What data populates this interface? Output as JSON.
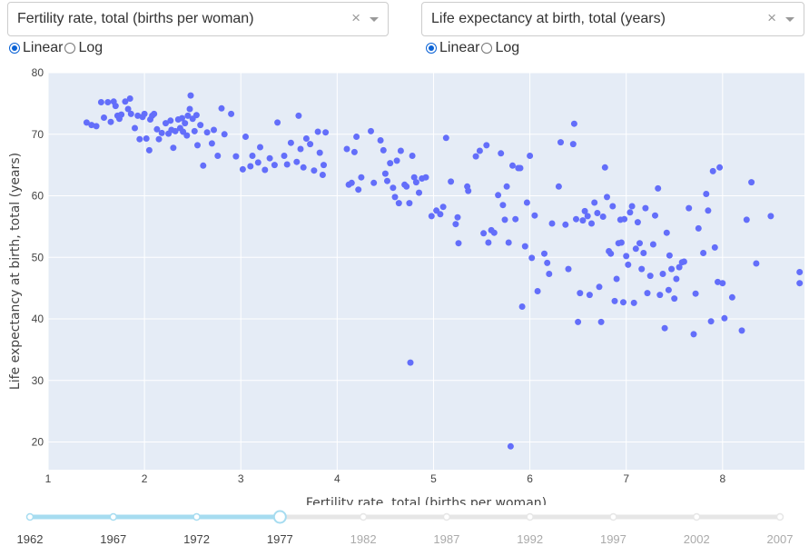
{
  "controls": {
    "x_dropdown": {
      "value": "Fertility rate, total (births per woman)"
    },
    "y_dropdown": {
      "value": "Life expectancy at birth, total (years)"
    },
    "clear_symbol": "×",
    "x_scale": {
      "options": [
        "Linear",
        "Log"
      ],
      "selected": "Linear"
    },
    "y_scale": {
      "options": [
        "Linear",
        "Log"
      ],
      "selected": "Linear"
    }
  },
  "slider": {
    "marks": [
      "1962",
      "1967",
      "1972",
      "1977",
      "1982",
      "1987",
      "1992",
      "1997",
      "2002",
      "2007"
    ],
    "selected": "1977",
    "active_color": "#a6dcf0",
    "inactive_color": "#e6e6e6"
  },
  "chart_data": {
    "type": "scatter",
    "xlabel": "Fertility rate, total (births per woman)",
    "ylabel": "Life expectancy at birth, total (years)",
    "xlim": [
      1,
      8.85
    ],
    "ylim": [
      15.5,
      80
    ],
    "x_ticks": [
      1,
      2,
      3,
      4,
      5,
      6,
      7,
      8
    ],
    "y_ticks": [
      20,
      30,
      40,
      50,
      60,
      70,
      80
    ],
    "grid": true,
    "plot_bg": "#e5ecf6",
    "marker_color": "#636efa",
    "points": [
      [
        1.4,
        71.9
      ],
      [
        1.45,
        71.5
      ],
      [
        1.5,
        71.3
      ],
      [
        1.55,
        75.2
      ],
      [
        1.58,
        72.7
      ],
      [
        1.62,
        75.2
      ],
      [
        1.65,
        72.0
      ],
      [
        1.68,
        75.3
      ],
      [
        1.7,
        74.6
      ],
      [
        1.72,
        73.0
      ],
      [
        1.74,
        72.5
      ],
      [
        1.76,
        73.2
      ],
      [
        1.8,
        75.3
      ],
      [
        1.83,
        74.1
      ],
      [
        1.85,
        75.8
      ],
      [
        1.86,
        73.3
      ],
      [
        1.9,
        71.0
      ],
      [
        1.93,
        73.0
      ],
      [
        1.95,
        69.2
      ],
      [
        1.98,
        72.8
      ],
      [
        2.0,
        73.3
      ],
      [
        2.02,
        69.3
      ],
      [
        2.05,
        67.4
      ],
      [
        2.06,
        72.4
      ],
      [
        2.08,
        73.0
      ],
      [
        2.1,
        73.3
      ],
      [
        2.13,
        70.8
      ],
      [
        2.15,
        69.2
      ],
      [
        2.18,
        70.2
      ],
      [
        2.22,
        71.8
      ],
      [
        2.25,
        70.1
      ],
      [
        2.27,
        72.2
      ],
      [
        2.28,
        70.7
      ],
      [
        2.3,
        67.8
      ],
      [
        2.32,
        70.5
      ],
      [
        2.35,
        72.4
      ],
      [
        2.37,
        71.0
      ],
      [
        2.39,
        72.6
      ],
      [
        2.4,
        70.4
      ],
      [
        2.42,
        71.8
      ],
      [
        2.44,
        69.8
      ],
      [
        2.45,
        73.0
      ],
      [
        2.47,
        74.1
      ],
      [
        2.48,
        76.3
      ],
      [
        2.5,
        72.5
      ],
      [
        2.52,
        70.5
      ],
      [
        2.54,
        73.1
      ],
      [
        2.55,
        68.2
      ],
      [
        2.58,
        71.5
      ],
      [
        2.61,
        64.9
      ],
      [
        2.65,
        70.3
      ],
      [
        2.7,
        68.5
      ],
      [
        2.72,
        70.7
      ],
      [
        2.76,
        66.5
      ],
      [
        2.8,
        74.2
      ],
      [
        2.83,
        70.0
      ],
      [
        2.9,
        73.3
      ],
      [
        2.95,
        66.4
      ],
      [
        3.02,
        64.3
      ],
      [
        3.05,
        69.6
      ],
      [
        3.1,
        64.8
      ],
      [
        3.12,
        66.5
      ],
      [
        3.18,
        65.4
      ],
      [
        3.2,
        67.9
      ],
      [
        3.25,
        64.2
      ],
      [
        3.3,
        66.1
      ],
      [
        3.35,
        65.0
      ],
      [
        3.38,
        71.9
      ],
      [
        3.45,
        66.5
      ],
      [
        3.48,
        65.1
      ],
      [
        3.52,
        68.6
      ],
      [
        3.58,
        65.5
      ],
      [
        3.6,
        73.0
      ],
      [
        3.62,
        67.6
      ],
      [
        3.65,
        64.6
      ],
      [
        3.68,
        69.3
      ],
      [
        3.72,
        68.4
      ],
      [
        3.76,
        64.1
      ],
      [
        3.8,
        70.4
      ],
      [
        3.82,
        67.0
      ],
      [
        3.85,
        63.4
      ],
      [
        3.86,
        65.0
      ],
      [
        3.88,
        70.3
      ],
      [
        4.1,
        67.6
      ],
      [
        4.12,
        61.8
      ],
      [
        4.15,
        62.1
      ],
      [
        4.18,
        67.1
      ],
      [
        4.2,
        69.6
      ],
      [
        4.22,
        61.0
      ],
      [
        4.25,
        63.0
      ],
      [
        4.35,
        70.5
      ],
      [
        4.38,
        62.1
      ],
      [
        4.45,
        69.0
      ],
      [
        4.48,
        67.4
      ],
      [
        4.5,
        63.6
      ],
      [
        4.52,
        62.4
      ],
      [
        4.55,
        65.3
      ],
      [
        4.58,
        61.3
      ],
      [
        4.6,
        59.8
      ],
      [
        4.62,
        65.7
      ],
      [
        4.64,
        58.8
      ],
      [
        4.66,
        67.3
      ],
      [
        4.7,
        61.8
      ],
      [
        4.72,
        61.5
      ],
      [
        4.75,
        58.8
      ],
      [
        4.76,
        32.9
      ],
      [
        4.78,
        66.5
      ],
      [
        4.8,
        63.0
      ],
      [
        4.82,
        62.2
      ],
      [
        4.85,
        60.5
      ],
      [
        4.88,
        62.8
      ],
      [
        4.92,
        63.0
      ],
      [
        4.98,
        56.7
      ],
      [
        5.03,
        57.6
      ],
      [
        5.07,
        57.0
      ],
      [
        5.1,
        58.2
      ],
      [
        5.13,
        69.4
      ],
      [
        5.18,
        62.3
      ],
      [
        5.23,
        55.4
      ],
      [
        5.25,
        56.5
      ],
      [
        5.26,
        52.3
      ],
      [
        5.35,
        61.5
      ],
      [
        5.36,
        60.8
      ],
      [
        5.44,
        66.4
      ],
      [
        5.48,
        67.3
      ],
      [
        5.52,
        53.9
      ],
      [
        5.55,
        68.2
      ],
      [
        5.57,
        52.4
      ],
      [
        5.6,
        54.4
      ],
      [
        5.63,
        54.0
      ],
      [
        5.67,
        60.1
      ],
      [
        5.7,
        66.9
      ],
      [
        5.72,
        58.5
      ],
      [
        5.74,
        56.1
      ],
      [
        5.76,
        61.5
      ],
      [
        5.78,
        52.4
      ],
      [
        5.8,
        19.3
      ],
      [
        5.82,
        64.9
      ],
      [
        5.85,
        56.2
      ],
      [
        5.88,
        64.5
      ],
      [
        5.9,
        64.5
      ],
      [
        5.92,
        42.0
      ],
      [
        5.95,
        51.8
      ],
      [
        5.97,
        58.9
      ],
      [
        6.0,
        66.5
      ],
      [
        6.02,
        49.9
      ],
      [
        6.05,
        56.8
      ],
      [
        6.08,
        44.5
      ],
      [
        6.15,
        50.6
      ],
      [
        6.18,
        49.1
      ],
      [
        6.2,
        47.3
      ],
      [
        6.23,
        55.5
      ],
      [
        6.3,
        61.5
      ],
      [
        6.32,
        68.7
      ],
      [
        6.37,
        55.3
      ],
      [
        6.4,
        48.1
      ],
      [
        6.45,
        68.4
      ],
      [
        6.46,
        71.7
      ],
      [
        6.48,
        56.2
      ],
      [
        6.5,
        39.5
      ],
      [
        6.52,
        44.2
      ],
      [
        6.55,
        56.0
      ],
      [
        6.57,
        57.5
      ],
      [
        6.6,
        56.7
      ],
      [
        6.62,
        43.9
      ],
      [
        6.64,
        55.5
      ],
      [
        6.67,
        58.9
      ],
      [
        6.7,
        57.2
      ],
      [
        6.72,
        45.2
      ],
      [
        6.74,
        39.5
      ],
      [
        6.76,
        56.6
      ],
      [
        6.78,
        64.6
      ],
      [
        6.8,
        59.8
      ],
      [
        6.82,
        51.0
      ],
      [
        6.84,
        50.6
      ],
      [
        6.86,
        58.3
      ],
      [
        6.88,
        42.9
      ],
      [
        6.9,
        46.5
      ],
      [
        6.92,
        52.3
      ],
      [
        6.94,
        56.1
      ],
      [
        6.95,
        52.4
      ],
      [
        6.97,
        42.7
      ],
      [
        6.98,
        56.2
      ],
      [
        7.0,
        50.2
      ],
      [
        7.02,
        48.8
      ],
      [
        7.04,
        57.3
      ],
      [
        7.06,
        58.3
      ],
      [
        7.08,
        42.6
      ],
      [
        7.1,
        51.4
      ],
      [
        7.12,
        55.7
      ],
      [
        7.14,
        52.3
      ],
      [
        7.16,
        48.1
      ],
      [
        7.18,
        50.7
      ],
      [
        7.2,
        58.0
      ],
      [
        7.22,
        44.2
      ],
      [
        7.25,
        47.0
      ],
      [
        7.28,
        52.1
      ],
      [
        7.3,
        56.8
      ],
      [
        7.33,
        61.2
      ],
      [
        7.35,
        43.9
      ],
      [
        7.38,
        47.3
      ],
      [
        7.4,
        38.5
      ],
      [
        7.42,
        54.0
      ],
      [
        7.44,
        44.7
      ],
      [
        7.45,
        50.3
      ],
      [
        7.47,
        48.1
      ],
      [
        7.5,
        43.3
      ],
      [
        7.52,
        46.5
      ],
      [
        7.55,
        48.4
      ],
      [
        7.58,
        49.2
      ],
      [
        7.6,
        49.3
      ],
      [
        7.65,
        58.0
      ],
      [
        7.7,
        37.5
      ],
      [
        7.72,
        44.1
      ],
      [
        7.75,
        54.7
      ],
      [
        7.8,
        50.7
      ],
      [
        7.83,
        60.3
      ],
      [
        7.85,
        57.6
      ],
      [
        7.88,
        39.6
      ],
      [
        7.9,
        64.0
      ],
      [
        7.92,
        51.6
      ],
      [
        7.95,
        46.0
      ],
      [
        7.97,
        64.6
      ],
      [
        8.0,
        45.8
      ],
      [
        8.02,
        40.1
      ],
      [
        8.1,
        43.5
      ],
      [
        8.2,
        38.1
      ],
      [
        8.25,
        56.1
      ],
      [
        8.3,
        62.2
      ],
      [
        8.35,
        49.0
      ],
      [
        8.5,
        56.7
      ],
      [
        8.8,
        47.6
      ],
      [
        8.8,
        45.8
      ]
    ]
  }
}
